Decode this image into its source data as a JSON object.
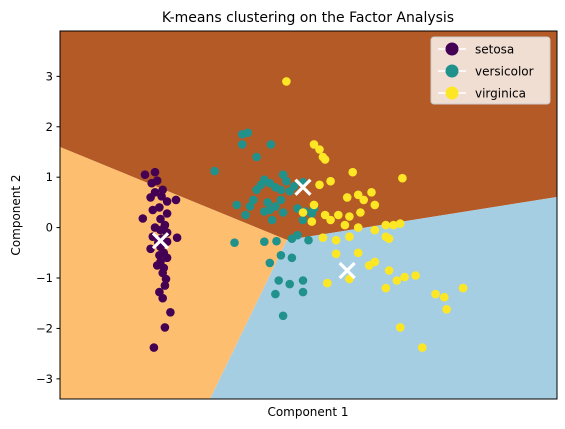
{
  "chart_data": {
    "type": "scatter",
    "title": "K-means clustering on the Factor Analysis",
    "xlabel": "Component 1",
    "ylabel": "Component 2",
    "xlim": [
      -1.9,
      2.6
    ],
    "ylim": [
      -3.4,
      3.9
    ],
    "y_ticks": [
      -3,
      -2,
      -1,
      0,
      1,
      2,
      3
    ],
    "x_ticks": [],
    "grid": false,
    "legend_position": "top-right",
    "regions": [
      {
        "name": "upper",
        "color": "#b35a26"
      },
      {
        "name": "left",
        "color": "#fdbf6f"
      },
      {
        "name": "lower-right",
        "color": "#a6cee3"
      }
    ],
    "series": [
      {
        "name": "setosa",
        "color": "#440154",
        "points": [
          [
            -1.13,
            1.05
          ],
          [
            -1.04,
            1.1
          ],
          [
            -1.07,
            0.88
          ],
          [
            -1.02,
            0.93
          ],
          [
            -0.97,
            0.75
          ],
          [
            -1.04,
            0.7
          ],
          [
            -0.98,
            0.62
          ],
          [
            -0.93,
            0.52
          ],
          [
            -1.08,
            0.6
          ],
          [
            -0.85,
            0.55
          ],
          [
            -1.0,
            0.4
          ],
          [
            -1.06,
            0.35
          ],
          [
            -0.93,
            0.28
          ],
          [
            -1.15,
            0.18
          ],
          [
            -0.99,
            0.17
          ],
          [
            -0.95,
            0.05
          ],
          [
            -1.04,
            0.0
          ],
          [
            -0.99,
            -0.05
          ],
          [
            -0.93,
            -0.1
          ],
          [
            -1.06,
            -0.18
          ],
          [
            -0.98,
            -0.22
          ],
          [
            -0.84,
            -0.2
          ],
          [
            -1.08,
            -0.42
          ],
          [
            -0.99,
            -0.38
          ],
          [
            -0.96,
            -0.5
          ],
          [
            -1.0,
            -0.55
          ],
          [
            -0.93,
            -0.6
          ],
          [
            -0.99,
            -0.68
          ],
          [
            -1.02,
            -0.75
          ],
          [
            -0.96,
            -0.8
          ],
          [
            -0.97,
            -0.9
          ],
          [
            -0.94,
            -1.02
          ],
          [
            -0.95,
            -1.15
          ],
          [
            -1.0,
            -1.28
          ],
          [
            -0.97,
            -1.4
          ],
          [
            -0.9,
            -1.68
          ],
          [
            -0.95,
            -1.98
          ],
          [
            -1.05,
            -2.38
          ],
          [
            -0.93,
            -0.28
          ],
          [
            -1.01,
            -0.3
          ]
        ]
      },
      {
        "name": "versicolor",
        "color": "#21918c",
        "points": [
          [
            -0.25,
            1.85
          ],
          [
            -0.2,
            1.88
          ],
          [
            -0.25,
            1.65
          ],
          [
            -0.12,
            1.4
          ],
          [
            0.01,
            1.65
          ],
          [
            -0.5,
            1.12
          ],
          [
            0.12,
            1.05
          ],
          [
            -0.05,
            0.95
          ],
          [
            0.0,
            0.88
          ],
          [
            -0.08,
            0.85
          ],
          [
            0.05,
            0.8
          ],
          [
            0.1,
            0.75
          ],
          [
            0.18,
            0.72
          ],
          [
            0.22,
            0.82
          ],
          [
            0.3,
            0.9
          ],
          [
            0.15,
            0.92
          ],
          [
            -0.12,
            0.75
          ],
          [
            -0.15,
            0.55
          ],
          [
            -0.02,
            0.5
          ],
          [
            0.05,
            0.42
          ],
          [
            0.1,
            0.55
          ],
          [
            0.0,
            0.35
          ],
          [
            -0.05,
            0.32
          ],
          [
            0.25,
            0.38
          ],
          [
            0.32,
            0.32
          ],
          [
            0.4,
            0.38
          ],
          [
            0.38,
            0.28
          ],
          [
            0.3,
            0.15
          ],
          [
            -0.22,
            0.25
          ],
          [
            -0.18,
            0.42
          ],
          [
            -0.3,
            0.45
          ],
          [
            0.12,
            0.3
          ],
          [
            -0.05,
            -0.28
          ],
          [
            0.06,
            -0.27
          ],
          [
            0.2,
            -0.22
          ],
          [
            0.35,
            -0.25
          ],
          [
            -0.32,
            -0.3
          ],
          [
            0.0,
            -0.7
          ],
          [
            0.1,
            -0.55
          ],
          [
            0.2,
            -0.6
          ],
          [
            0.08,
            -1.05
          ],
          [
            0.18,
            -1.12
          ],
          [
            0.3,
            -1.05
          ],
          [
            0.3,
            -1.28
          ],
          [
            0.05,
            -1.32
          ],
          [
            0.12,
            -1.75
          ],
          [
            0.25,
            -0.15
          ],
          [
            0.02,
            0.15
          ]
        ]
      },
      {
        "name": "virginica",
        "color": "#fde725",
        "points": [
          [
            0.15,
            2.9
          ],
          [
            0.4,
            1.65
          ],
          [
            0.45,
            1.55
          ],
          [
            0.48,
            1.4
          ],
          [
            0.5,
            1.35
          ],
          [
            0.75,
            1.1
          ],
          [
            0.55,
            0.92
          ],
          [
            0.45,
            0.85
          ],
          [
            0.8,
            0.65
          ],
          [
            0.92,
            0.7
          ],
          [
            1.2,
            0.98
          ],
          [
            0.7,
            0.6
          ],
          [
            0.85,
            0.55
          ],
          [
            0.4,
            0.45
          ],
          [
            0.95,
            0.45
          ],
          [
            0.3,
            0.3
          ],
          [
            0.5,
            0.25
          ],
          [
            0.62,
            0.25
          ],
          [
            0.72,
            0.22
          ],
          [
            0.82,
            0.3
          ],
          [
            0.55,
            0.15
          ],
          [
            0.38,
            0.12
          ],
          [
            1.05,
            0.05
          ],
          [
            1.12,
            0.05
          ],
          [
            1.18,
            0.08
          ],
          [
            0.68,
            0.05
          ],
          [
            0.8,
            0.0
          ],
          [
            0.95,
            -0.05
          ],
          [
            1.05,
            -0.18
          ],
          [
            1.08,
            -0.22
          ],
          [
            0.72,
            -0.18
          ],
          [
            0.6,
            -0.25
          ],
          [
            0.48,
            -0.2
          ],
          [
            0.6,
            -0.52
          ],
          [
            0.8,
            -0.5
          ],
          [
            0.95,
            -0.68
          ],
          [
            1.08,
            -0.85
          ],
          [
            1.15,
            -1.05
          ],
          [
            1.22,
            -0.98
          ],
          [
            1.32,
            -0.95
          ],
          [
            0.52,
            -1.1
          ],
          [
            1.05,
            -1.2
          ],
          [
            1.5,
            -1.32
          ],
          [
            1.58,
            -1.38
          ],
          [
            1.75,
            -1.2
          ],
          [
            1.6,
            -1.62
          ],
          [
            1.18,
            -1.98
          ],
          [
            1.38,
            -2.38
          ],
          [
            0.72,
            -1.02
          ],
          [
            0.9,
            -0.75
          ]
        ]
      }
    ],
    "centroids": [
      [
        -0.99,
        -0.26
      ],
      [
        0.3,
        0.8
      ],
      [
        0.7,
        -0.85
      ]
    ]
  }
}
